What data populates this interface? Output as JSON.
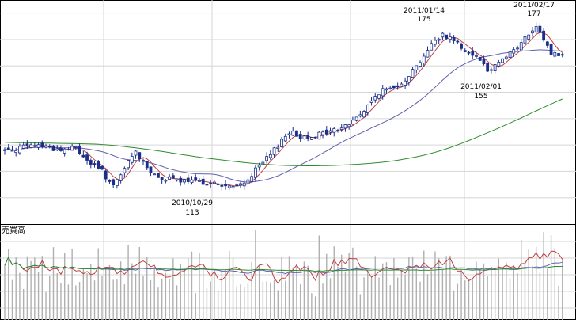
{
  "chart_data": [
    {
      "type": "candlestick",
      "title": "",
      "xlabel": "",
      "ylabel": "",
      "grid": true,
      "ylim": [
        100,
        185
      ],
      "date_range": [
        "2010-08-02",
        "2011-03-04"
      ],
      "annotations": [
        {
          "date": "2010/10/29",
          "value": "113",
          "kind": "low"
        },
        {
          "date": "2011/01/14",
          "value": "175",
          "kind": "high"
        },
        {
          "date": "2011/02/01",
          "value": "155",
          "kind": "low"
        },
        {
          "date": "2011/02/17",
          "value": "177",
          "kind": "high"
        }
      ],
      "close_anchors": [
        [
          0,
          128
        ],
        [
          4,
          129
        ],
        [
          9,
          130
        ],
        [
          15,
          128
        ],
        [
          19,
          129
        ],
        [
          22,
          124
        ],
        [
          26,
          120
        ],
        [
          29,
          114
        ],
        [
          31,
          118
        ],
        [
          33,
          124
        ],
        [
          35,
          127
        ],
        [
          37,
          124
        ],
        [
          40,
          118
        ],
        [
          44,
          117
        ],
        [
          49,
          116
        ],
        [
          53,
          116
        ],
        [
          57,
          115
        ],
        [
          60,
          114
        ],
        [
          62,
          114
        ],
        [
          65,
          117
        ],
        [
          68,
          122
        ],
        [
          71,
          126
        ],
        [
          74,
          132
        ],
        [
          76,
          135
        ],
        [
          79,
          133
        ],
        [
          84,
          134
        ],
        [
          89,
          136
        ],
        [
          92,
          138
        ],
        [
          96,
          143
        ],
        [
          100,
          150
        ],
        [
          104,
          152
        ],
        [
          107,
          155
        ],
        [
          110,
          160
        ],
        [
          114,
          168
        ],
        [
          117,
          172
        ],
        [
          120,
          170
        ],
        [
          123,
          166
        ],
        [
          127,
          163
        ],
        [
          129,
          158
        ],
        [
          133,
          163
        ],
        [
          137,
          167
        ],
        [
          140,
          172
        ],
        [
          142,
          174
        ],
        [
          144,
          170
        ],
        [
          146,
          165
        ],
        [
          149,
          164
        ]
      ],
      "moving_averages": [
        {
          "name": "",
          "color": "#c04040",
          "period": 5
        },
        {
          "name": "",
          "color": "#6060b0",
          "period": 25
        },
        {
          "name": "",
          "color": "#2e8b2e",
          "period": 75
        }
      ],
      "colors": {
        "up": "#ffffff",
        "down": "#1a2f8a",
        "edge": "#1a2f8a"
      }
    },
    {
      "type": "bar",
      "title": "",
      "panel_label": "売買高",
      "grid": true,
      "bar_color": "#b0b0b0",
      "moving_averages": [
        {
          "name": "",
          "color": "#c04040",
          "period": 5
        },
        {
          "name": "",
          "color": "#6060b0",
          "period": 25
        },
        {
          "name": "",
          "color": "#2e8b2e",
          "period": 75
        }
      ]
    }
  ]
}
